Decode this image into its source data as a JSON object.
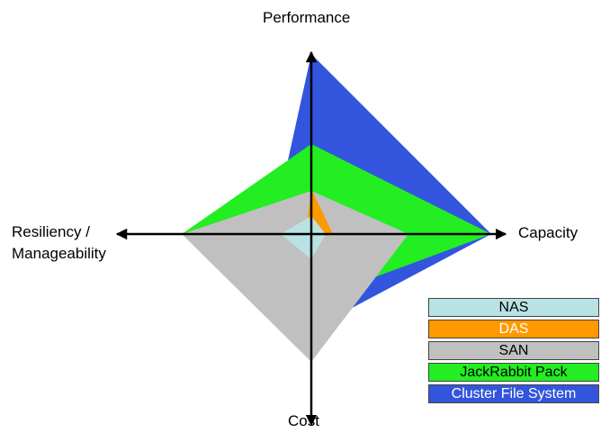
{
  "chart_data": {
    "type": "radar",
    "axes": [
      "Performance",
      "Capacity",
      "Cost",
      "Resiliency / Manageability"
    ],
    "axis_labels": {
      "top": "Performance",
      "right": "Capacity",
      "bottom": "Cost",
      "left_line1": "Resiliency /",
      "left_line2": "Manageability"
    },
    "range": [
      0,
      10
    ],
    "series": [
      {
        "name": "Cluster File System",
        "color": "#3355dd",
        "values": [
          10,
          10,
          5.3,
          2.2
        ]
      },
      {
        "name": "JackRabbit Pack",
        "color": "#22ee22",
        "values": [
          5,
          10,
          3.7,
          7.2
        ]
      },
      {
        "name": "SAN",
        "color": "#c0c0c0",
        "values": [
          2.4,
          5.4,
          7.1,
          7.2
        ]
      },
      {
        "name": "DAS",
        "color": "#ff9900",
        "values": [
          2.5,
          1.2,
          0.3,
          0.3
        ]
      },
      {
        "name": "NAS",
        "color": "#b9e2e4",
        "values": [
          1,
          0.8,
          1.4,
          1.7
        ]
      }
    ],
    "legend_order": [
      "NAS",
      "DAS",
      "SAN",
      "JackRabbit Pack",
      "Cluster File System"
    ],
    "legend_position": "bottom-right",
    "legend_colors": {
      "NAS": {
        "bg": "#b9e2e4",
        "fg": "#000000"
      },
      "DAS": {
        "bg": "#ff9900",
        "fg": "#ffffff"
      },
      "SAN": {
        "bg": "#c0c0c0",
        "fg": "#000000"
      },
      "JackRabbit Pack": {
        "bg": "#22ee22",
        "fg": "#000000"
      },
      "Cluster File System": {
        "bg": "#3355dd",
        "fg": "#ffffff"
      }
    }
  }
}
